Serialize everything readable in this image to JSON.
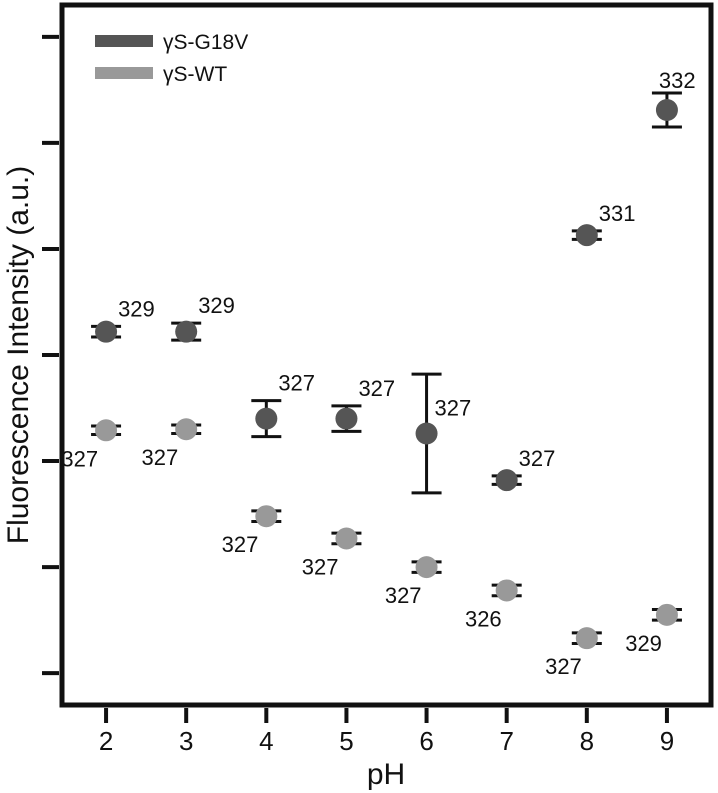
{
  "chart_data": {
    "type": "scatter",
    "title": "",
    "xlabel": "pH",
    "ylabel": "Fluorescence Intensity (a.u.)",
    "x": [
      2,
      3,
      4,
      5,
      6,
      7,
      8,
      9
    ],
    "xlim": [
      1.45,
      9.55
    ],
    "ylim": [
      -0.3,
      6.3
    ],
    "y_tick_count": 7,
    "y_tick_labels_shown": false,
    "grid": false,
    "legend_position": "top-left",
    "series": [
      {
        "name": "γS-G18V",
        "color": "#555555",
        "values": [
          3.22,
          3.22,
          2.4,
          2.4,
          2.26,
          1.82,
          4.13,
          5.31
        ],
        "errors": [
          0.05,
          0.08,
          0.17,
          0.12,
          0.56,
          0.04,
          0.04,
          0.16
        ],
        "point_labels": [
          "329",
          "329",
          "327",
          "327",
          "327",
          "327",
          "331",
          "332"
        ]
      },
      {
        "name": "γS-WT",
        "color": "#999999",
        "values": [
          2.29,
          2.3,
          1.48,
          1.27,
          1.0,
          0.78,
          0.33,
          0.55
        ],
        "errors": [
          0.04,
          0.04,
          0.05,
          0.05,
          0.05,
          0.05,
          0.05,
          0.05
        ],
        "point_labels": [
          "327",
          "327",
          "327",
          "327",
          "327",
          "326",
          "327",
          "329"
        ]
      }
    ]
  }
}
